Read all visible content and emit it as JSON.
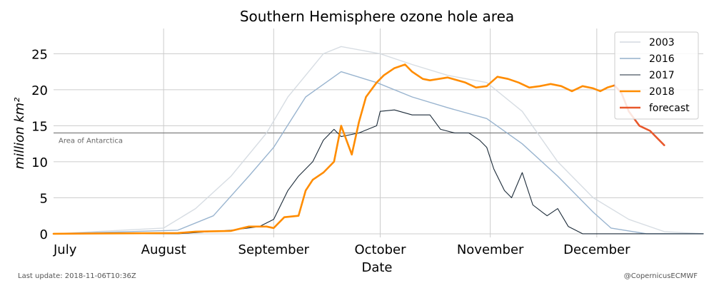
{
  "footer": {
    "last_update": "Last update: 2018-11-06T10:36Z",
    "credit": "@CopernicusECMWF"
  },
  "colors": {
    "background": "#ffffff",
    "grid": "#cccccc",
    "reference_line": "#7f7f7f",
    "series_light": "#d3d9e0",
    "series_medium": "#93b0cc",
    "series_dark": "#1b2a38",
    "series_2018": "#ff8c00",
    "forecast": "#e8582c"
  },
  "chart_data": {
    "type": "line",
    "title": "Southern Hemisphere ozone hole area",
    "xlabel": "Date",
    "ylabel": "million km²",
    "x_unit": "date",
    "xlim": [
      "2018-07-01",
      "2018-12-31"
    ],
    "ylim": [
      -0.5,
      28.5
    ],
    "yticks": [
      0,
      5,
      10,
      15,
      20,
      25
    ],
    "xticks": [
      {
        "date": "2018-07-01",
        "label": "July"
      },
      {
        "date": "2018-08-01",
        "label": "August"
      },
      {
        "date": "2018-09-01",
        "label": "September"
      },
      {
        "date": "2018-10-01",
        "label": "October"
      },
      {
        "date": "2018-11-01",
        "label": "November"
      },
      {
        "date": "2018-12-01",
        "label": "December"
      }
    ],
    "grid": true,
    "legend": {
      "position": "top-right",
      "entries": [
        "2003",
        "2016",
        "2017",
        "2018",
        "forecast"
      ]
    },
    "reference_line": {
      "y": 14,
      "label": "Area of Antarctica"
    },
    "series": [
      {
        "name": "2003",
        "style": "light",
        "points": [
          [
            "2018-07-01",
            0
          ],
          [
            "2018-08-01",
            0.8
          ],
          [
            "2018-08-10",
            3.5
          ],
          [
            "2018-08-20",
            8
          ],
          [
            "2018-08-30",
            14
          ],
          [
            "2018-09-05",
            19
          ],
          [
            "2018-09-10",
            22
          ],
          [
            "2018-09-15",
            25
          ],
          [
            "2018-09-20",
            26
          ],
          [
            "2018-10-01",
            25
          ],
          [
            "2018-10-10",
            23.5
          ],
          [
            "2018-10-20",
            22
          ],
          [
            "2018-10-31",
            21
          ],
          [
            "2018-11-10",
            17
          ],
          [
            "2018-11-20",
            10
          ],
          [
            "2018-11-30",
            5
          ],
          [
            "2018-12-10",
            2
          ],
          [
            "2018-12-20",
            0.3
          ],
          [
            "2018-12-31",
            0
          ]
        ]
      },
      {
        "name": "2016",
        "style": "medium",
        "points": [
          [
            "2018-07-01",
            0
          ],
          [
            "2018-08-05",
            0.5
          ],
          [
            "2018-08-15",
            2.5
          ],
          [
            "2018-08-25",
            8
          ],
          [
            "2018-09-01",
            12
          ],
          [
            "2018-09-10",
            19
          ],
          [
            "2018-09-20",
            22.5
          ],
          [
            "2018-09-30",
            21
          ],
          [
            "2018-10-10",
            19
          ],
          [
            "2018-10-20",
            17.5
          ],
          [
            "2018-10-31",
            16
          ],
          [
            "2018-11-10",
            12.5
          ],
          [
            "2018-11-20",
            8
          ],
          [
            "2018-11-30",
            3
          ],
          [
            "2018-12-05",
            0.8
          ],
          [
            "2018-12-15",
            0
          ],
          [
            "2018-12-31",
            0
          ]
        ]
      },
      {
        "name": "2017",
        "style": "dark",
        "points": [
          [
            "2018-07-01",
            0
          ],
          [
            "2018-08-05",
            0
          ],
          [
            "2018-08-20",
            0.5
          ],
          [
            "2018-08-28",
            1
          ],
          [
            "2018-09-01",
            2
          ],
          [
            "2018-09-05",
            6
          ],
          [
            "2018-09-08",
            8
          ],
          [
            "2018-09-12",
            10
          ],
          [
            "2018-09-15",
            13
          ],
          [
            "2018-09-18",
            14.5
          ],
          [
            "2018-09-20",
            13.5
          ],
          [
            "2018-09-25",
            14
          ],
          [
            "2018-09-30",
            15
          ],
          [
            "2018-10-01",
            17
          ],
          [
            "2018-10-05",
            17.2
          ],
          [
            "2018-10-10",
            16.5
          ],
          [
            "2018-10-15",
            16.5
          ],
          [
            "2018-10-18",
            14.5
          ],
          [
            "2018-10-22",
            14
          ],
          [
            "2018-10-26",
            14
          ],
          [
            "2018-10-29",
            13
          ],
          [
            "2018-10-31",
            12
          ],
          [
            "2018-11-02",
            9
          ],
          [
            "2018-11-05",
            6
          ],
          [
            "2018-11-07",
            5
          ],
          [
            "2018-11-10",
            8.5
          ],
          [
            "2018-11-13",
            4
          ],
          [
            "2018-11-17",
            2.5
          ],
          [
            "2018-11-20",
            3.5
          ],
          [
            "2018-11-23",
            1
          ],
          [
            "2018-11-27",
            0
          ],
          [
            "2018-12-31",
            0
          ]
        ]
      },
      {
        "name": "2018",
        "style": "highlight",
        "points": [
          [
            "2018-07-01",
            0
          ],
          [
            "2018-08-05",
            0.1
          ],
          [
            "2018-08-10",
            0.3
          ],
          [
            "2018-08-20",
            0.4
          ],
          [
            "2018-08-25",
            1
          ],
          [
            "2018-08-30",
            1
          ],
          [
            "2018-09-01",
            0.8
          ],
          [
            "2018-09-04",
            2.3
          ],
          [
            "2018-09-08",
            2.5
          ],
          [
            "2018-09-10",
            6
          ],
          [
            "2018-09-12",
            7.5
          ],
          [
            "2018-09-15",
            8.5
          ],
          [
            "2018-09-18",
            10
          ],
          [
            "2018-09-20",
            15
          ],
          [
            "2018-09-23",
            11
          ],
          [
            "2018-09-25",
            15.5
          ],
          [
            "2018-09-27",
            19
          ],
          [
            "2018-09-30",
            21
          ],
          [
            "2018-10-02",
            22
          ],
          [
            "2018-10-05",
            23
          ],
          [
            "2018-10-08",
            23.5
          ],
          [
            "2018-10-10",
            22.5
          ],
          [
            "2018-10-13",
            21.5
          ],
          [
            "2018-10-15",
            21.3
          ],
          [
            "2018-10-20",
            21.7
          ],
          [
            "2018-10-25",
            21
          ],
          [
            "2018-10-28",
            20.3
          ],
          [
            "2018-10-31",
            20.5
          ],
          [
            "2018-11-03",
            21.8
          ],
          [
            "2018-11-06",
            21.5
          ],
          [
            "2018-11-09",
            21
          ],
          [
            "2018-11-12",
            20.3
          ],
          [
            "2018-11-15",
            20.5
          ],
          [
            "2018-11-18",
            20.8
          ],
          [
            "2018-11-21",
            20.5
          ],
          [
            "2018-11-24",
            19.8
          ],
          [
            "2018-11-27",
            20.5
          ],
          [
            "2018-11-30",
            20.2
          ],
          [
            "2018-12-02",
            19.8
          ],
          [
            "2018-12-04",
            20.3
          ],
          [
            "2018-12-06",
            20.6
          ]
        ]
      },
      {
        "name": "forecast",
        "style": "forecast",
        "points": [
          [
            "2018-12-06",
            20.6
          ],
          [
            "2018-12-08",
            19.5
          ],
          [
            "2018-12-10",
            17
          ],
          [
            "2018-12-13",
            15
          ],
          [
            "2018-12-16",
            14.3
          ],
          [
            "2018-12-20",
            12.3
          ]
        ]
      }
    ]
  }
}
